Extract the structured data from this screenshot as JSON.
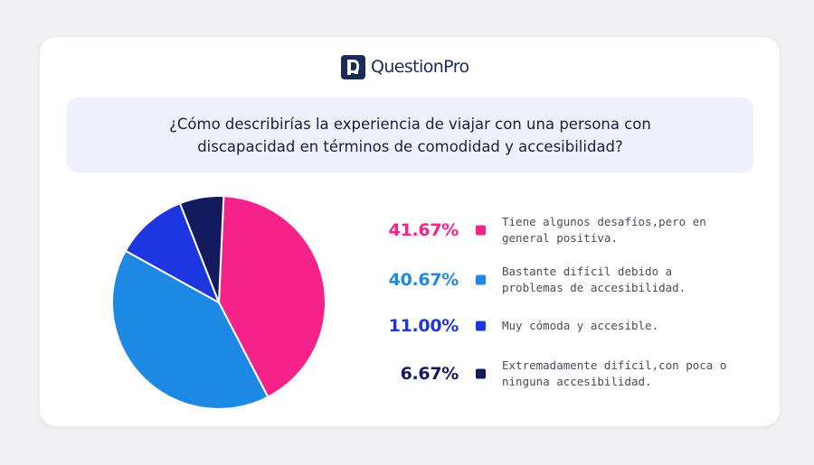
{
  "brand": {
    "name": "QuestionPro",
    "mark_color": "#1b2a5b"
  },
  "question": "¿Cómo describirías la experiencia de viajar con una persona con discapacidad en términos de comodidad y accesibilidad?",
  "chart_data": {
    "type": "pie",
    "title": "¿Cómo describirías la experiencia de viajar con una persona con discapacidad en términos de comodidad y accesibilidad?",
    "legend_position": "right",
    "slices": [
      {
        "label": "Tiene algunos desafíos,pero en general positiva.",
        "value": 41.67,
        "display": "41.67%",
        "color": "#f42289"
      },
      {
        "label": "Bastante difícil debido a problemas de accesibilidad.",
        "value": 40.67,
        "display": "40.67%",
        "color": "#1e88e5"
      },
      {
        "label": "Muy cómoda y accesible.",
        "value": 11.0,
        "display": "11.00%",
        "color": "#1d36e0"
      },
      {
        "label": "Extremadamente difícil,con poca o ninguna accesibilidad.",
        "value": 6.67,
        "display": "6.67%",
        "color": "#141a5e"
      }
    ]
  }
}
